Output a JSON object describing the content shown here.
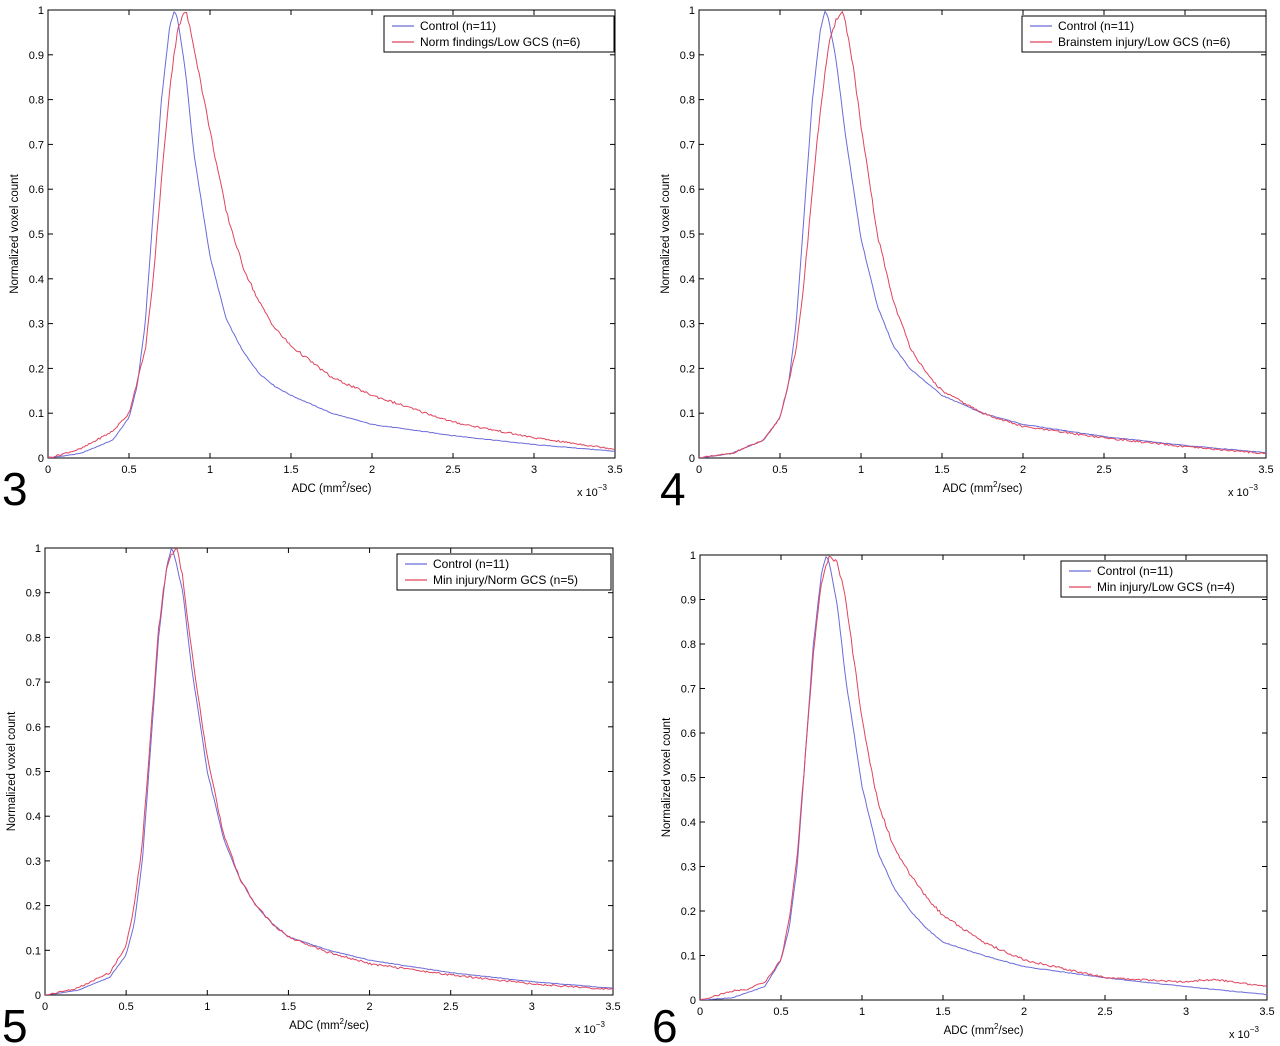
{
  "figure_text": {
    "xlabel_prefix": "ADC (mm",
    "xlabel_sup": "2",
    "xlabel_suffix": "/sec)",
    "ylabel": "Normalized voxel count",
    "multiplier_base": "x 10",
    "multiplier_exp": "−3"
  },
  "colors": {
    "control": "#6b6bd8",
    "patient": "#e0455e",
    "axis": "#000000"
  },
  "chart_data": [
    {
      "type": "line",
      "panel_label": "3",
      "xlim": [
        0,
        3.5
      ],
      "ylim": [
        0,
        1
      ],
      "x_ticks": [
        0,
        0.5,
        1,
        1.5,
        2,
        2.5,
        3,
        3.5
      ],
      "x_tick_labels": [
        "0",
        "0.5",
        "1",
        "1.5",
        "2",
        "2.5",
        "3",
        "3.5"
      ],
      "y_ticks": [
        0,
        0.1,
        0.2,
        0.3,
        0.4,
        0.5,
        0.6,
        0.7,
        0.8,
        0.9,
        1
      ],
      "y_tick_labels": [
        "0",
        "0.1",
        "0.2",
        "0.3",
        "0.4",
        "0.5",
        "0.6",
        "0.7",
        "0.8",
        "0.9",
        "1"
      ],
      "legend_position": "top-right",
      "series": [
        {
          "name": "Control (n=11)",
          "color": "control",
          "x": [
            0,
            0.2,
            0.4,
            0.5,
            0.55,
            0.6,
            0.65,
            0.7,
            0.75,
            0.78,
            0.8,
            0.85,
            0.9,
            1.0,
            1.1,
            1.2,
            1.3,
            1.4,
            1.5,
            1.75,
            2.0,
            2.5,
            3.0,
            3.5
          ],
          "y": [
            0,
            0.01,
            0.04,
            0.09,
            0.16,
            0.3,
            0.55,
            0.8,
            0.96,
            1.0,
            0.98,
            0.86,
            0.68,
            0.45,
            0.31,
            0.24,
            0.19,
            0.16,
            0.14,
            0.1,
            0.075,
            0.05,
            0.03,
            0.015
          ]
        },
        {
          "name": "Norm findings/Low GCS (n=6)",
          "color": "patient",
          "x": [
            0,
            0.2,
            0.4,
            0.5,
            0.6,
            0.65,
            0.7,
            0.75,
            0.8,
            0.85,
            0.9,
            1.0,
            1.1,
            1.2,
            1.3,
            1.4,
            1.5,
            1.75,
            2.0,
            2.5,
            3.0,
            3.5
          ],
          "y": [
            0,
            0.02,
            0.06,
            0.1,
            0.24,
            0.4,
            0.62,
            0.82,
            0.96,
            1.0,
            0.92,
            0.73,
            0.55,
            0.43,
            0.35,
            0.29,
            0.25,
            0.18,
            0.14,
            0.08,
            0.045,
            0.02
          ]
        }
      ]
    },
    {
      "type": "line",
      "panel_label": "4",
      "xlim": [
        0,
        3.5
      ],
      "ylim": [
        0,
        1
      ],
      "x_ticks": [
        0,
        0.5,
        1,
        1.5,
        2,
        2.5,
        3,
        3.5
      ],
      "x_tick_labels": [
        "0",
        "0.5",
        "1",
        "1.5",
        "2",
        "2.5",
        "3",
        "3.5"
      ],
      "y_ticks": [
        0,
        0.1,
        0.2,
        0.3,
        0.4,
        0.5,
        0.6,
        0.7,
        0.8,
        0.9,
        1
      ],
      "y_tick_labels": [
        "0",
        "0.1",
        "0.2",
        "0.3",
        "0.4",
        "0.5",
        "0.6",
        "0.7",
        "0.8",
        "0.9",
        "1"
      ],
      "legend_position": "top-right",
      "series": [
        {
          "name": "Control (n=11)",
          "color": "control",
          "x": [
            0,
            0.2,
            0.4,
            0.5,
            0.55,
            0.6,
            0.65,
            0.7,
            0.75,
            0.78,
            0.8,
            0.85,
            0.9,
            1.0,
            1.1,
            1.2,
            1.3,
            1.4,
            1.5,
            1.75,
            2.0,
            2.5,
            3.0,
            3.5
          ],
          "y": [
            0,
            0.01,
            0.04,
            0.09,
            0.16,
            0.3,
            0.55,
            0.8,
            0.96,
            1.0,
            0.98,
            0.88,
            0.73,
            0.49,
            0.34,
            0.25,
            0.2,
            0.17,
            0.14,
            0.1,
            0.075,
            0.048,
            0.028,
            0.012
          ]
        },
        {
          "name": "Brainstem injury/Low GCS (n=6)",
          "color": "patient",
          "x": [
            0,
            0.2,
            0.4,
            0.5,
            0.6,
            0.65,
            0.7,
            0.75,
            0.8,
            0.85,
            0.88,
            0.9,
            0.95,
            1.0,
            1.1,
            1.2,
            1.3,
            1.4,
            1.5,
            1.75,
            2.0,
            2.5,
            3.0,
            3.5
          ],
          "y": [
            0,
            0.01,
            0.04,
            0.09,
            0.24,
            0.4,
            0.6,
            0.78,
            0.92,
            0.98,
            1.0,
            0.98,
            0.88,
            0.74,
            0.5,
            0.35,
            0.25,
            0.19,
            0.15,
            0.1,
            0.07,
            0.045,
            0.025,
            0.01
          ]
        }
      ]
    },
    {
      "type": "line",
      "panel_label": "5",
      "xlim": [
        0,
        3.5
      ],
      "ylim": [
        0,
        1
      ],
      "x_ticks": [
        0,
        0.5,
        1,
        1.5,
        2,
        2.5,
        3,
        3.5
      ],
      "x_tick_labels": [
        "0",
        "0.5",
        "1",
        "1.5",
        "2",
        "2.5",
        "3",
        "3.5"
      ],
      "y_ticks": [
        0,
        0.1,
        0.2,
        0.3,
        0.4,
        0.5,
        0.6,
        0.7,
        0.8,
        0.9,
        1
      ],
      "y_tick_labels": [
        "0",
        "0.1",
        "0.2",
        "0.3",
        "0.4",
        "0.5",
        "0.6",
        "0.7",
        "0.8",
        "0.9",
        "1"
      ],
      "legend_position": "top-right",
      "series": [
        {
          "name": "Control (n=11)",
          "color": "control",
          "x": [
            0,
            0.2,
            0.4,
            0.5,
            0.55,
            0.6,
            0.65,
            0.7,
            0.75,
            0.78,
            0.8,
            0.85,
            0.9,
            1.0,
            1.1,
            1.2,
            1.3,
            1.4,
            1.5,
            1.75,
            2.0,
            2.5,
            3.0,
            3.5
          ],
          "y": [
            0,
            0.01,
            0.04,
            0.09,
            0.16,
            0.3,
            0.55,
            0.8,
            0.96,
            1.0,
            0.98,
            0.9,
            0.74,
            0.5,
            0.35,
            0.26,
            0.2,
            0.16,
            0.13,
            0.1,
            0.078,
            0.05,
            0.03,
            0.015
          ]
        },
        {
          "name": "Min injury/Norm GCS (n=5)",
          "color": "patient",
          "x": [
            0,
            0.2,
            0.4,
            0.5,
            0.55,
            0.6,
            0.65,
            0.7,
            0.75,
            0.8,
            0.82,
            0.85,
            0.9,
            1.0,
            1.1,
            1.2,
            1.3,
            1.4,
            1.5,
            1.75,
            2.0,
            2.5,
            3.0,
            3.5
          ],
          "y": [
            0,
            0.015,
            0.05,
            0.11,
            0.2,
            0.34,
            0.58,
            0.82,
            0.96,
            1.0,
            0.99,
            0.93,
            0.78,
            0.53,
            0.36,
            0.26,
            0.2,
            0.16,
            0.13,
            0.095,
            0.07,
            0.045,
            0.025,
            0.012
          ]
        }
      ]
    },
    {
      "type": "line",
      "panel_label": "6",
      "xlim": [
        0,
        3.5
      ],
      "ylim": [
        0,
        1
      ],
      "x_ticks": [
        0,
        0.5,
        1,
        1.5,
        2,
        2.5,
        3,
        3.5
      ],
      "x_tick_labels": [
        "0",
        "0.5",
        "1",
        "1.5",
        "2",
        "2.5",
        "3",
        "3.5"
      ],
      "y_ticks": [
        0,
        0.1,
        0.2,
        0.3,
        0.4,
        0.5,
        0.6,
        0.7,
        0.8,
        0.9,
        1
      ],
      "y_tick_labels": [
        "0",
        "0.1",
        "0.2",
        "0.3",
        "0.4",
        "0.5",
        "0.6",
        "0.7",
        "0.8",
        "0.9",
        "1"
      ],
      "legend_position": "top-right",
      "series": [
        {
          "name": "Control (n=11)",
          "color": "control",
          "x": [
            0,
            0.2,
            0.4,
            0.5,
            0.55,
            0.6,
            0.65,
            0.7,
            0.75,
            0.78,
            0.8,
            0.85,
            0.9,
            1.0,
            1.1,
            1.2,
            1.3,
            1.4,
            1.5,
            1.75,
            2.0,
            2.5,
            3.0,
            3.5
          ],
          "y": [
            0,
            0.005,
            0.03,
            0.09,
            0.16,
            0.3,
            0.55,
            0.8,
            0.96,
            1.0,
            0.98,
            0.88,
            0.72,
            0.48,
            0.33,
            0.25,
            0.2,
            0.16,
            0.13,
            0.1,
            0.075,
            0.05,
            0.03,
            0.012
          ]
        },
        {
          "name": "Min injury/Low GCS (n=4)",
          "color": "patient",
          "x": [
            0,
            0.1,
            0.2,
            0.3,
            0.4,
            0.5,
            0.55,
            0.6,
            0.65,
            0.7,
            0.75,
            0.8,
            0.85,
            0.9,
            1.0,
            1.1,
            1.2,
            1.3,
            1.4,
            1.5,
            1.75,
            2.0,
            2.5,
            3.0,
            3.1,
            3.2,
            3.3,
            3.4,
            3.5
          ],
          "y": [
            0,
            0.01,
            0.02,
            0.025,
            0.04,
            0.09,
            0.18,
            0.32,
            0.55,
            0.78,
            0.94,
            1.0,
            0.98,
            0.9,
            0.63,
            0.44,
            0.34,
            0.28,
            0.23,
            0.19,
            0.13,
            0.09,
            0.05,
            0.04,
            0.045,
            0.045,
            0.04,
            0.035,
            0.03
          ]
        }
      ]
    }
  ]
}
